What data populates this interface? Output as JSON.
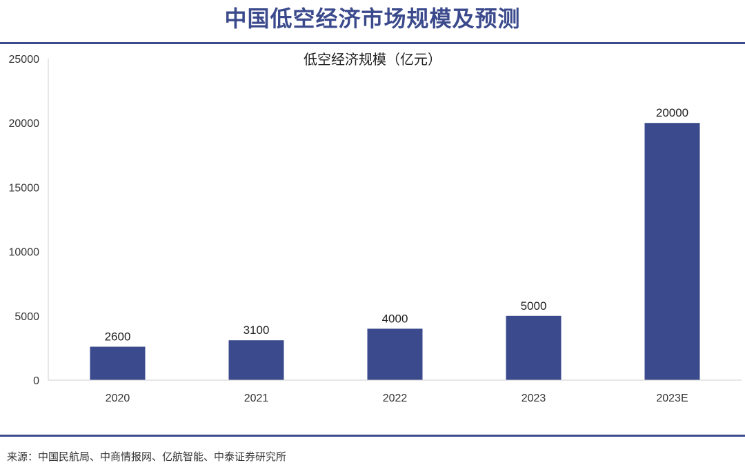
{
  "header": {
    "title": "中国低空经济市场规模及预测"
  },
  "footer": {
    "source": "来源：中国民航局、中商情报网、亿航智能、中泰证券研究所"
  },
  "colors": {
    "bar": "#3B4A8C",
    "title": "#3B4A8C",
    "rule": "#3B4A8C",
    "axis": "#CFCFCF"
  },
  "chart_data": {
    "type": "bar",
    "title": "低空经济规模（亿元）",
    "categories": [
      "2020",
      "2021",
      "2022",
      "2023",
      "2023E"
    ],
    "values": [
      2600,
      3100,
      4000,
      5000,
      20000
    ],
    "data_labels": [
      "2600",
      "3100",
      "4000",
      "5000",
      "20000"
    ],
    "ylim": [
      0,
      25000
    ],
    "yticks": [
      0,
      5000,
      10000,
      15000,
      20000,
      25000
    ],
    "ytick_labels": [
      "0",
      "5000",
      "10000",
      "15000",
      "20000",
      "25000"
    ],
    "xlabel": "",
    "ylabel": "",
    "grid": false,
    "legend": "none"
  }
}
